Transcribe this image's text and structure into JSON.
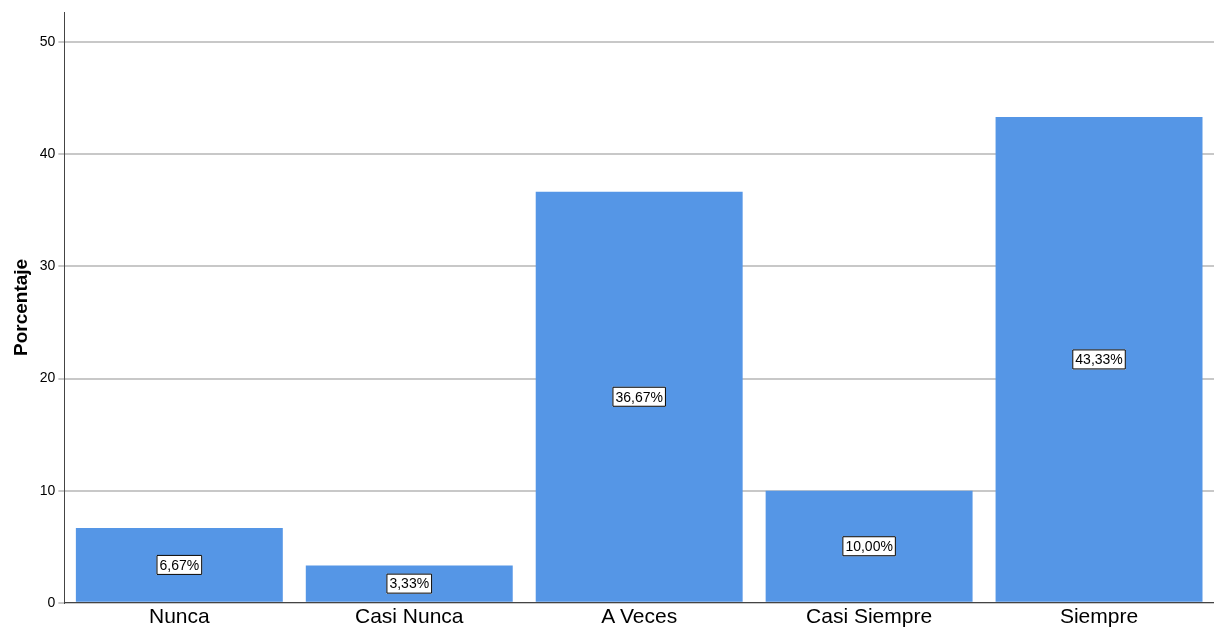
{
  "chart_data": {
    "type": "bar",
    "ylabel": "Porcentaje",
    "categories": [
      "Nunca",
      "Casi Nunca",
      "A Veces",
      "Casi Siempre",
      "Siempre"
    ],
    "values": [
      6.67,
      3.33,
      36.67,
      10.0,
      43.33
    ],
    "value_labels": [
      "6,67%",
      "3,33%",
      "36,67%",
      "10,00%",
      "43,33%"
    ],
    "color": "#5596e6",
    "ylim": [
      0,
      52.7
    ],
    "yticks": [
      0,
      10,
      20,
      30,
      40,
      50
    ],
    "grid": "y",
    "legend": false
  }
}
